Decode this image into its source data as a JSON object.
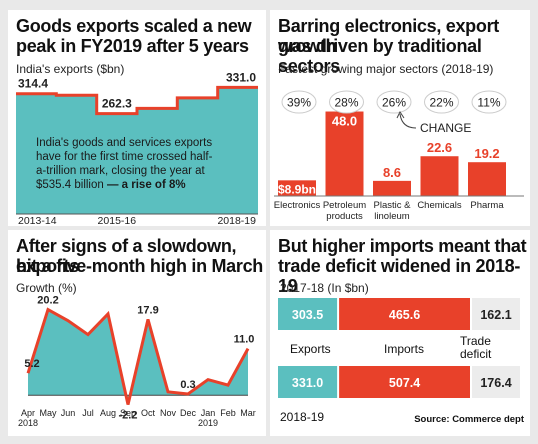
{
  "panels": {
    "exports": {
      "title_line1": "Goods exports scaled a new",
      "title_line2": "peak in FY2019 after 5 years",
      "subtitle": "India's exports ($bn)",
      "annotation_line1": "India's goods and services exports",
      "annotation_line2": "have for the first time crossed half-",
      "annotation_line3": "a-trillion mark, closing the year at",
      "annotation_line4_a": "$535.4 billion",
      "annotation_line4_b": " — a rise of 8%"
    },
    "sectors": {
      "title_line1": "Barring electronics, export growth",
      "title_line2": "was driven by traditional sectors",
      "subtitle": "Fastest growing major sectors (2018-19)",
      "change_label": "CHANGE"
    },
    "growth": {
      "title_line1": "After signs of a slowdown, exports",
      "title_line2": "hit a five-month high in March",
      "subtitle": "Growth (%)"
    },
    "deficit": {
      "title_line1": "But higher imports meant that",
      "title_line2": "trade deficit widened in 2018-19",
      "subtitle": "2017-18 (In $bn)",
      "label_exports": "Exports",
      "label_imports": "Imports",
      "label_deficit_1": "Trade",
      "label_deficit_2": "deficit",
      "bottom_year": "2018-19"
    }
  },
  "source": "Source: Commerce dept",
  "colors": {
    "teal": "#5bbfbf",
    "red": "#e8412a",
    "grey_bg": "#e9e9e9",
    "deficit_bg": "#ececec"
  },
  "chart_data": [
    {
      "type": "area",
      "categories": [
        "2013-14",
        "2014-15",
        "2015-16",
        "2016-17",
        "2017-18",
        "2018-19"
      ],
      "x_tick_labels": [
        "2013-14",
        "2015-16",
        "2018-19"
      ],
      "values": [
        314.4,
        310.4,
        262.3,
        275.9,
        303.5,
        331.0
      ],
      "data_labels": {
        "2013-14": "314.4",
        "2015-16": "262.3",
        "2018-19": "331.0"
      },
      "ylim": [
        0,
        345
      ]
    },
    {
      "type": "bar",
      "categories": [
        "Electronics",
        "Petroleum products",
        "Plastic & linoleum",
        "Chemicals",
        "Pharma"
      ],
      "category_lines": [
        [
          "Electronics"
        ],
        [
          "Petroleum",
          "products"
        ],
        [
          "Plastic &",
          "linoleum"
        ],
        [
          "Chemicals"
        ],
        [
          "Pharma"
        ]
      ],
      "values": [
        8.9,
        48.0,
        8.6,
        22.6,
        19.2
      ],
      "value_labels": [
        "$8.9bn",
        "48.0",
        "8.6",
        "22.6",
        "19.2"
      ],
      "change": [
        "39%",
        "28%",
        "26%",
        "22%",
        "11%"
      ],
      "ylim": [
        0,
        50
      ]
    },
    {
      "type": "area",
      "categories": [
        "Apr",
        "May",
        "Jun",
        "Jul",
        "Aug",
        "Sep",
        "Oct",
        "Nov",
        "Dec",
        "Jan",
        "Feb",
        "Mar"
      ],
      "x_tick_labels": [
        "Apr",
        "May",
        "Jun",
        "Jul",
        "Aug",
        "Sep",
        "Oct",
        "Nov",
        "Dec",
        "Jan",
        "Feb",
        "Mar"
      ],
      "x_year_labels": {
        "Apr": "2018",
        "Jan": "2019"
      },
      "values": [
        5.2,
        20.2,
        17.6,
        14.3,
        19.2,
        -2.2,
        17.9,
        0.8,
        0.3,
        3.7,
        2.4,
        11.0
      ],
      "data_labels": {
        "Apr": "5.2",
        "May": "20.2",
        "Sep": "-2.2",
        "Oct": "17.9",
        "Dec": "0.3",
        "Mar": "11.0"
      },
      "ylim": [
        -3,
        22
      ]
    },
    {
      "type": "bar",
      "categories": [
        "Exports",
        "Imports",
        "Trade deficit"
      ],
      "series": [
        {
          "name": "2017-18",
          "values": [
            303.5,
            465.6,
            162.1
          ]
        },
        {
          "name": "2018-19",
          "values": [
            331.0,
            507.4,
            176.4
          ]
        }
      ],
      "value_labels": [
        [
          "303.5",
          "465.6",
          "162.1"
        ],
        [
          "331.0",
          "507.4",
          "176.4"
        ]
      ]
    }
  ]
}
